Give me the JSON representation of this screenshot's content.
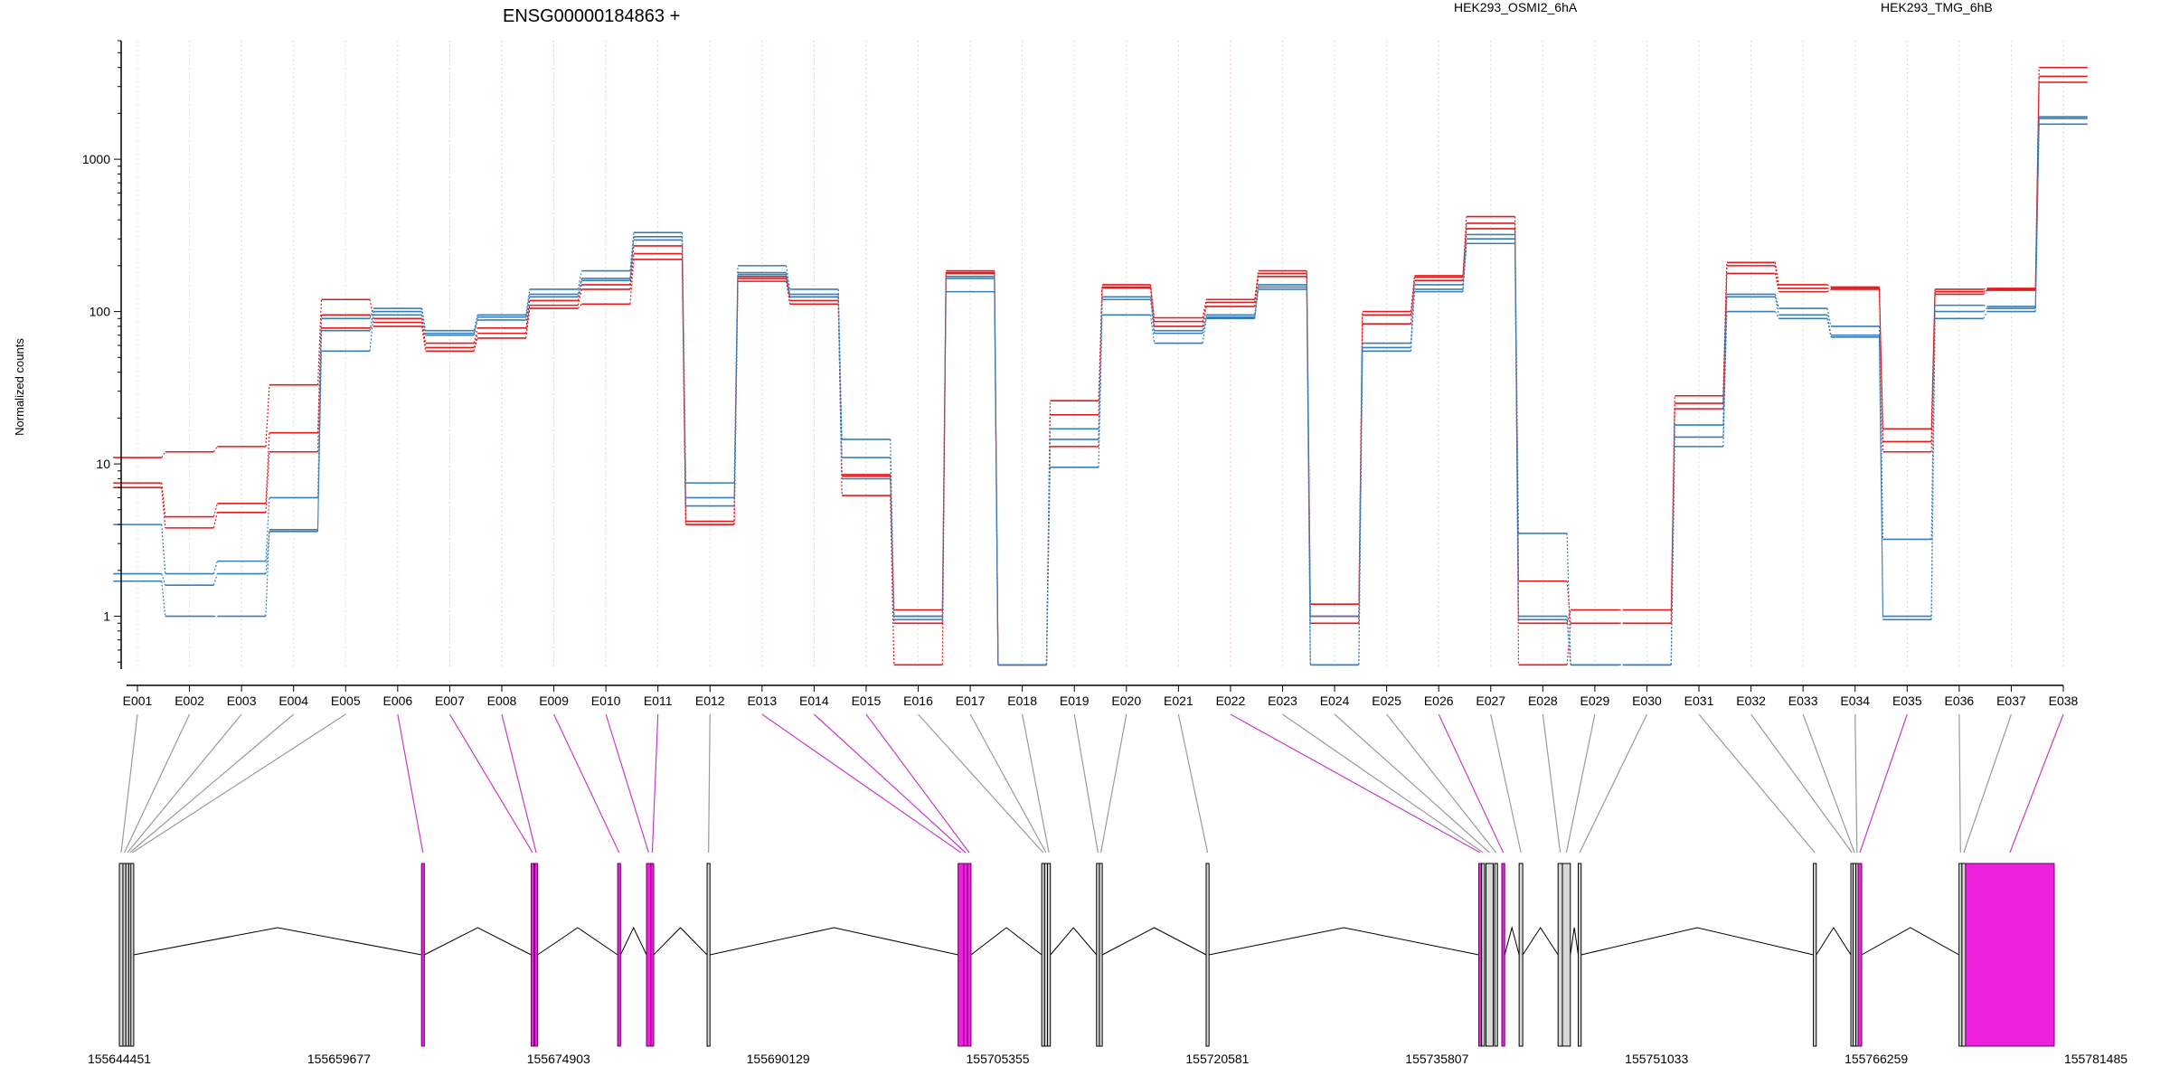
{
  "chart_data": {
    "type": "line",
    "title": "ENSG00000184863 +",
    "ylabel": "Normalized counts",
    "yscale": "log",
    "ylim": [
      0.45,
      6000
    ],
    "yticks": [
      1,
      10,
      100,
      1000
    ],
    "ytick_labels": [
      "1",
      "10",
      "100",
      "1000"
    ],
    "categories": [
      "E001",
      "E002",
      "E003",
      "E004",
      "E005",
      "E006",
      "E007",
      "E008",
      "E009",
      "E010",
      "E011",
      "E012",
      "E013",
      "E014",
      "E015",
      "E016",
      "E017",
      "E018",
      "E019",
      "E020",
      "E021",
      "E022",
      "E023",
      "E024",
      "E025",
      "E026",
      "E027",
      "E028",
      "E029",
      "E030",
      "E031",
      "E032",
      "E033",
      "E034",
      "E035",
      "E036",
      "E037",
      "E038"
    ],
    "legend": [
      {
        "name": "HEK293_OSMI2_6hA",
        "color": "#e41a1c"
      },
      {
        "name": "HEK293_TMG_6hB",
        "color": "#377eb8"
      }
    ],
    "highlighted_exons": [
      "E006",
      "E007",
      "E008",
      "E009",
      "E010",
      "E011",
      "E013",
      "E014",
      "E015",
      "E022",
      "E026",
      "E035",
      "E038"
    ],
    "series": [
      {
        "group": "HEK293_OSMI2_6hA",
        "color": "#e41a1c",
        "values": [
          11,
          12,
          13,
          33,
          120,
          90,
          62,
          78,
          118,
          150,
          270,
          4.2,
          170,
          125,
          6.2,
          0.48,
          185,
          0.48,
          26,
          150,
          91,
          120,
          185,
          1.2,
          100,
          172,
          420,
          0.48,
          0.9,
          0.9,
          28,
          210,
          150,
          145,
          17,
          140,
          142,
          4000
        ]
      },
      {
        "group": "HEK293_OSMI2_6hA",
        "color": "#e41a1c",
        "values": [
          7.5,
          4.5,
          5.5,
          16,
          95,
          85,
          58,
          72,
          110,
          140,
          240,
          4.0,
          165,
          118,
          8.5,
          0.9,
          180,
          0.48,
          21,
          145,
          86,
          115,
          178,
          1.0,
          95,
          168,
          380,
          1.7,
          0.9,
          0.9,
          25,
          200,
          142,
          142,
          14,
          135,
          140,
          3500
        ]
      },
      {
        "group": "HEK293_OSMI2_6hA",
        "color": "#e41a1c",
        "values": [
          7.0,
          3.8,
          4.8,
          12,
          78,
          80,
          55,
          67,
          105,
          112,
          220,
          4.0,
          158,
          112,
          8.3,
          1.1,
          178,
          0.48,
          13,
          143,
          80,
          108,
          170,
          0.9,
          83,
          160,
          350,
          0.9,
          1.1,
          1.1,
          23,
          178,
          135,
          140,
          12,
          130,
          138,
          3200
        ]
      },
      {
        "group": "HEK293_TMG_6hB",
        "color": "#377eb8",
        "values": [
          4.0,
          1.9,
          2.3,
          6.0,
          90,
          105,
          75,
          95,
          140,
          185,
          330,
          7.5,
          200,
          140,
          14.5,
          1.0,
          170,
          0.48,
          17,
          125,
          75,
          95,
          150,
          1.0,
          62,
          150,
          320,
          3.5,
          0.48,
          0.48,
          18,
          130,
          105,
          80,
          3.2,
          110,
          108,
          1900
        ]
      },
      {
        "group": "HEK293_TMG_6hB",
        "color": "#377eb8",
        "values": [
          1.9,
          1.6,
          1.9,
          3.6,
          75,
          100,
          72,
          92,
          130,
          165,
          310,
          6.0,
          180,
          130,
          11,
          1.0,
          165,
          0.48,
          14.5,
          120,
          72,
          92,
          145,
          0.48,
          58,
          140,
          300,
          1.0,
          0.48,
          0.48,
          15,
          125,
          95,
          70,
          1.0,
          100,
          105,
          1850
        ]
      },
      {
        "group": "HEK293_TMG_6hB",
        "color": "#377eb8",
        "values": [
          1.7,
          1.0,
          1.0,
          3.7,
          55,
          95,
          70,
          88,
          125,
          160,
          295,
          5.3,
          175,
          125,
          8.0,
          0.95,
          135,
          0.48,
          9.5,
          95,
          62,
          90,
          140,
          0.48,
          55,
          135,
          280,
          0.95,
          0.48,
          0.48,
          13,
          100,
          90,
          68,
          0.95,
          90,
          100,
          1700
        ]
      }
    ],
    "genomic_axis_ticks": [
      "155644451",
      "155659677",
      "155674903",
      "155690129",
      "155705355",
      "155720581",
      "155735807",
      "155751033",
      "155766259",
      "155781485"
    ]
  }
}
